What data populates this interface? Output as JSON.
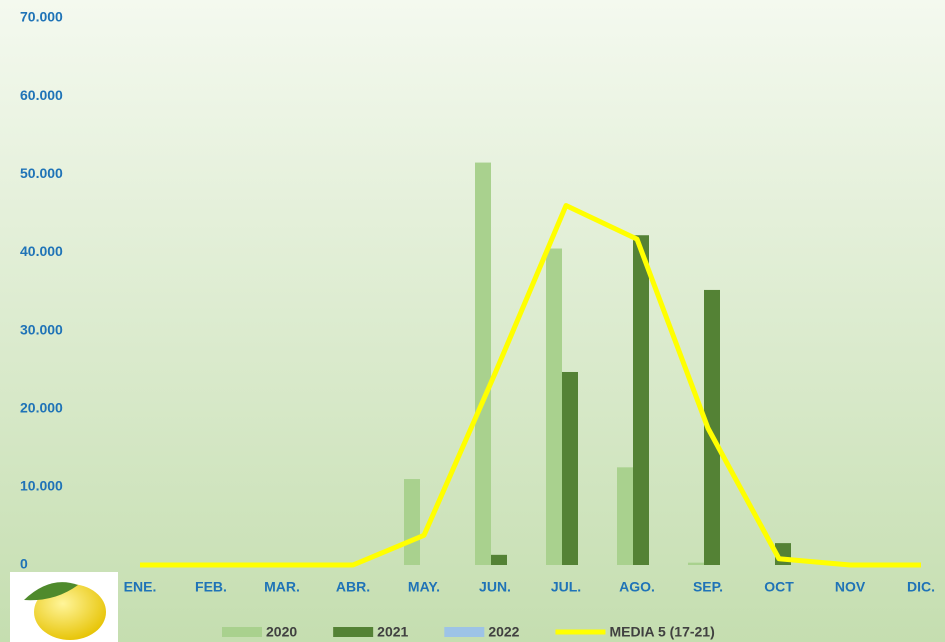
{
  "chart_data": {
    "type": "bar",
    "categories": [
      "ENE.",
      "FEB.",
      "MAR.",
      "ABR.",
      "MAY.",
      "JUN.",
      "JUL.",
      "AGO.",
      "SEP.",
      "OCT",
      "NOV",
      "DIC."
    ],
    "series": [
      {
        "name": "2020",
        "color": "#a9d18e",
        "type": "bar",
        "values": [
          0,
          0,
          0,
          0,
          11000,
          51500,
          40500,
          12500,
          300,
          0,
          0,
          0
        ]
      },
      {
        "name": "2021",
        "color": "#548235",
        "type": "bar",
        "values": [
          0,
          0,
          0,
          0,
          0,
          1300,
          24700,
          42200,
          35200,
          2800,
          0,
          0
        ]
      },
      {
        "name": "2022",
        "color": "#9dc3e6",
        "type": "bar",
        "values": [
          0,
          0,
          0,
          0,
          0,
          0,
          0,
          0,
          0,
          0,
          0,
          0
        ]
      },
      {
        "name": "MEDIA 5 (17-21)",
        "color": "#ffff00",
        "type": "line",
        "values": [
          0,
          0,
          0,
          0,
          3800,
          24500,
          46000,
          41700,
          17500,
          800,
          0,
          0
        ]
      }
    ],
    "ylim": [
      0,
      70000
    ],
    "yticks": [
      0,
      {
        "value": 10000,
        "label": "10.000"
      },
      {
        "value": 20000,
        "label": "20.000"
      },
      {
        "value": 30000,
        "label": "30.000"
      },
      {
        "value": 40000,
        "label": "40.000"
      },
      {
        "value": 50000,
        "label": "50.000"
      },
      {
        "value": 60000,
        "label": "60.000"
      },
      {
        "value": 70000,
        "label": "70.000"
      }
    ],
    "legend": "bottom"
  }
}
